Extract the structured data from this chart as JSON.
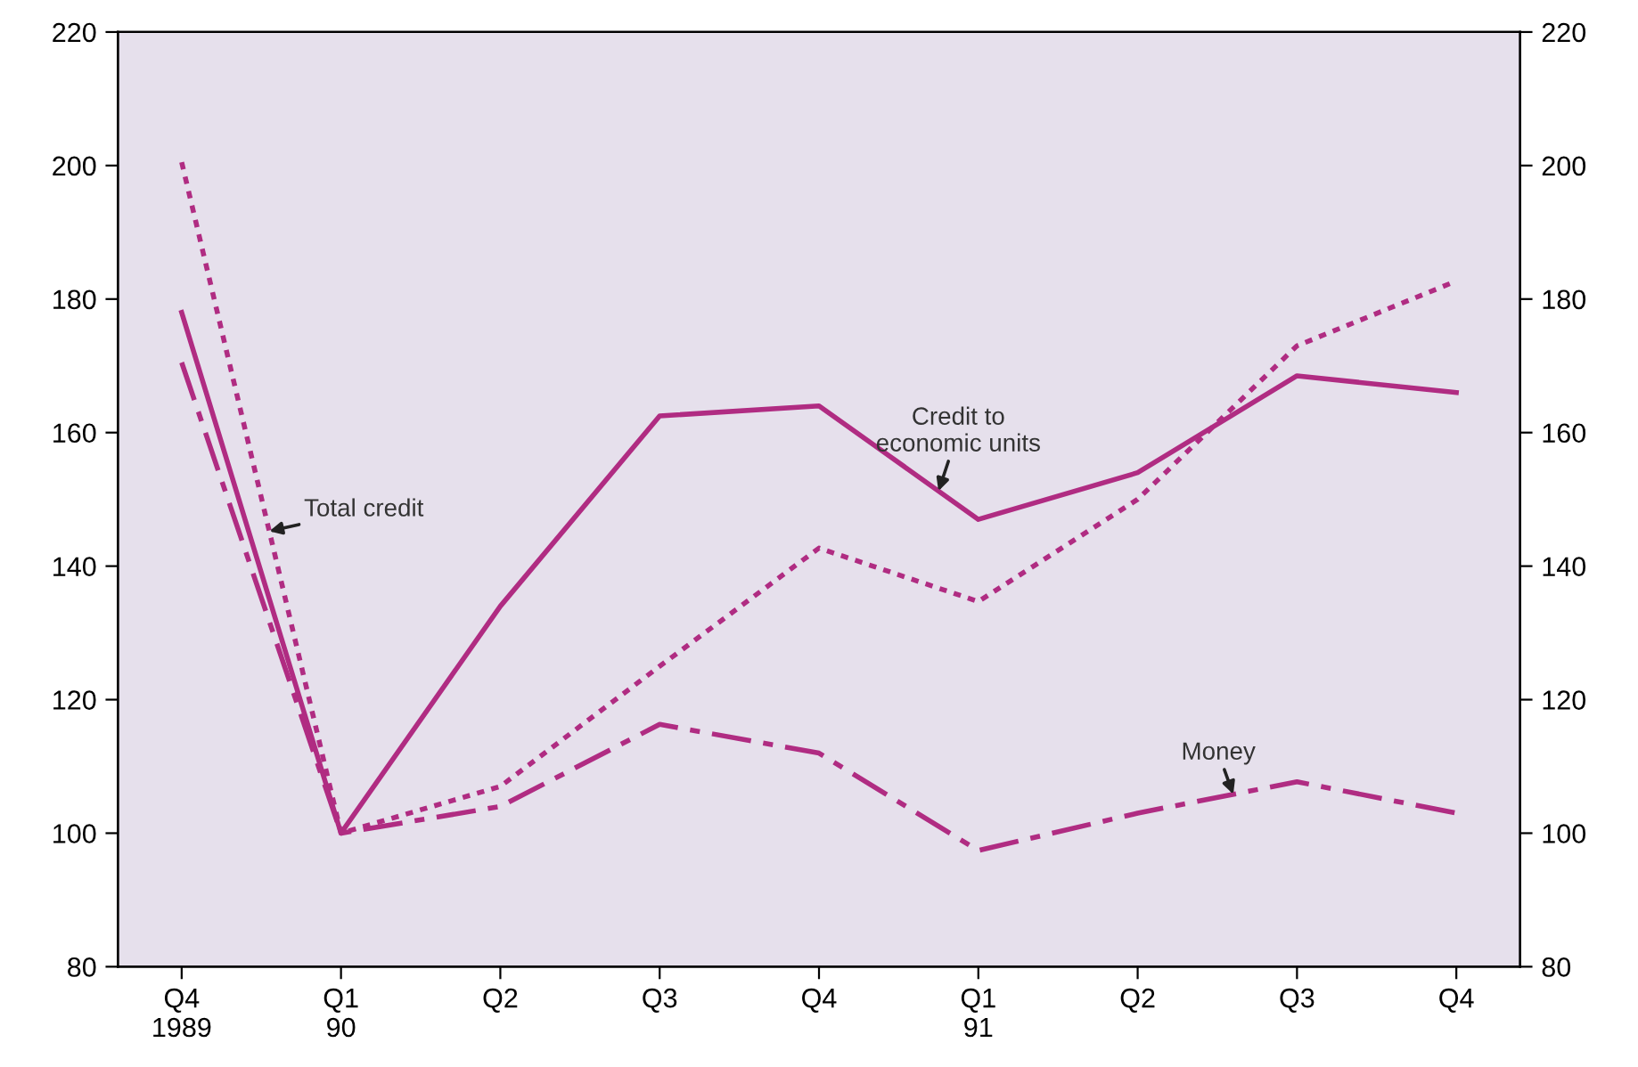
{
  "chart_data": {
    "type": "line",
    "categories": [
      "Q4\n1989",
      "Q1\n90",
      "Q2",
      "Q3",
      "Q4",
      "Q1\n91",
      "Q2",
      "Q3",
      "Q4"
    ],
    "series": [
      {
        "name": "Credit to\neconomic units",
        "color": "#b02c82",
        "line_style": "solid",
        "values": [
          178,
          100,
          134,
          162.5,
          164,
          147,
          154,
          168.5,
          166
        ]
      },
      {
        "name": "Total credit",
        "color": "#b02c82",
        "line_style": "dotted",
        "values": [
          200.5,
          100,
          107,
          125,
          142.7,
          134.7,
          150,
          173,
          182.7
        ]
      },
      {
        "name": "Money",
        "color": "#b02c82",
        "line_style": "dashed",
        "values": [
          170.5,
          100,
          104,
          116.3,
          112,
          97.4,
          103,
          107.7,
          103
        ]
      }
    ],
    "ylim": [
      80,
      220
    ],
    "yticks": [
      80,
      100,
      120,
      140,
      160,
      180,
      200,
      220
    ],
    "y2lim": [
      80,
      220
    ],
    "y2ticks": [
      80,
      100,
      120,
      140,
      160,
      180,
      200,
      220
    ],
    "grid": false,
    "legend": false,
    "marker": "none"
  }
}
